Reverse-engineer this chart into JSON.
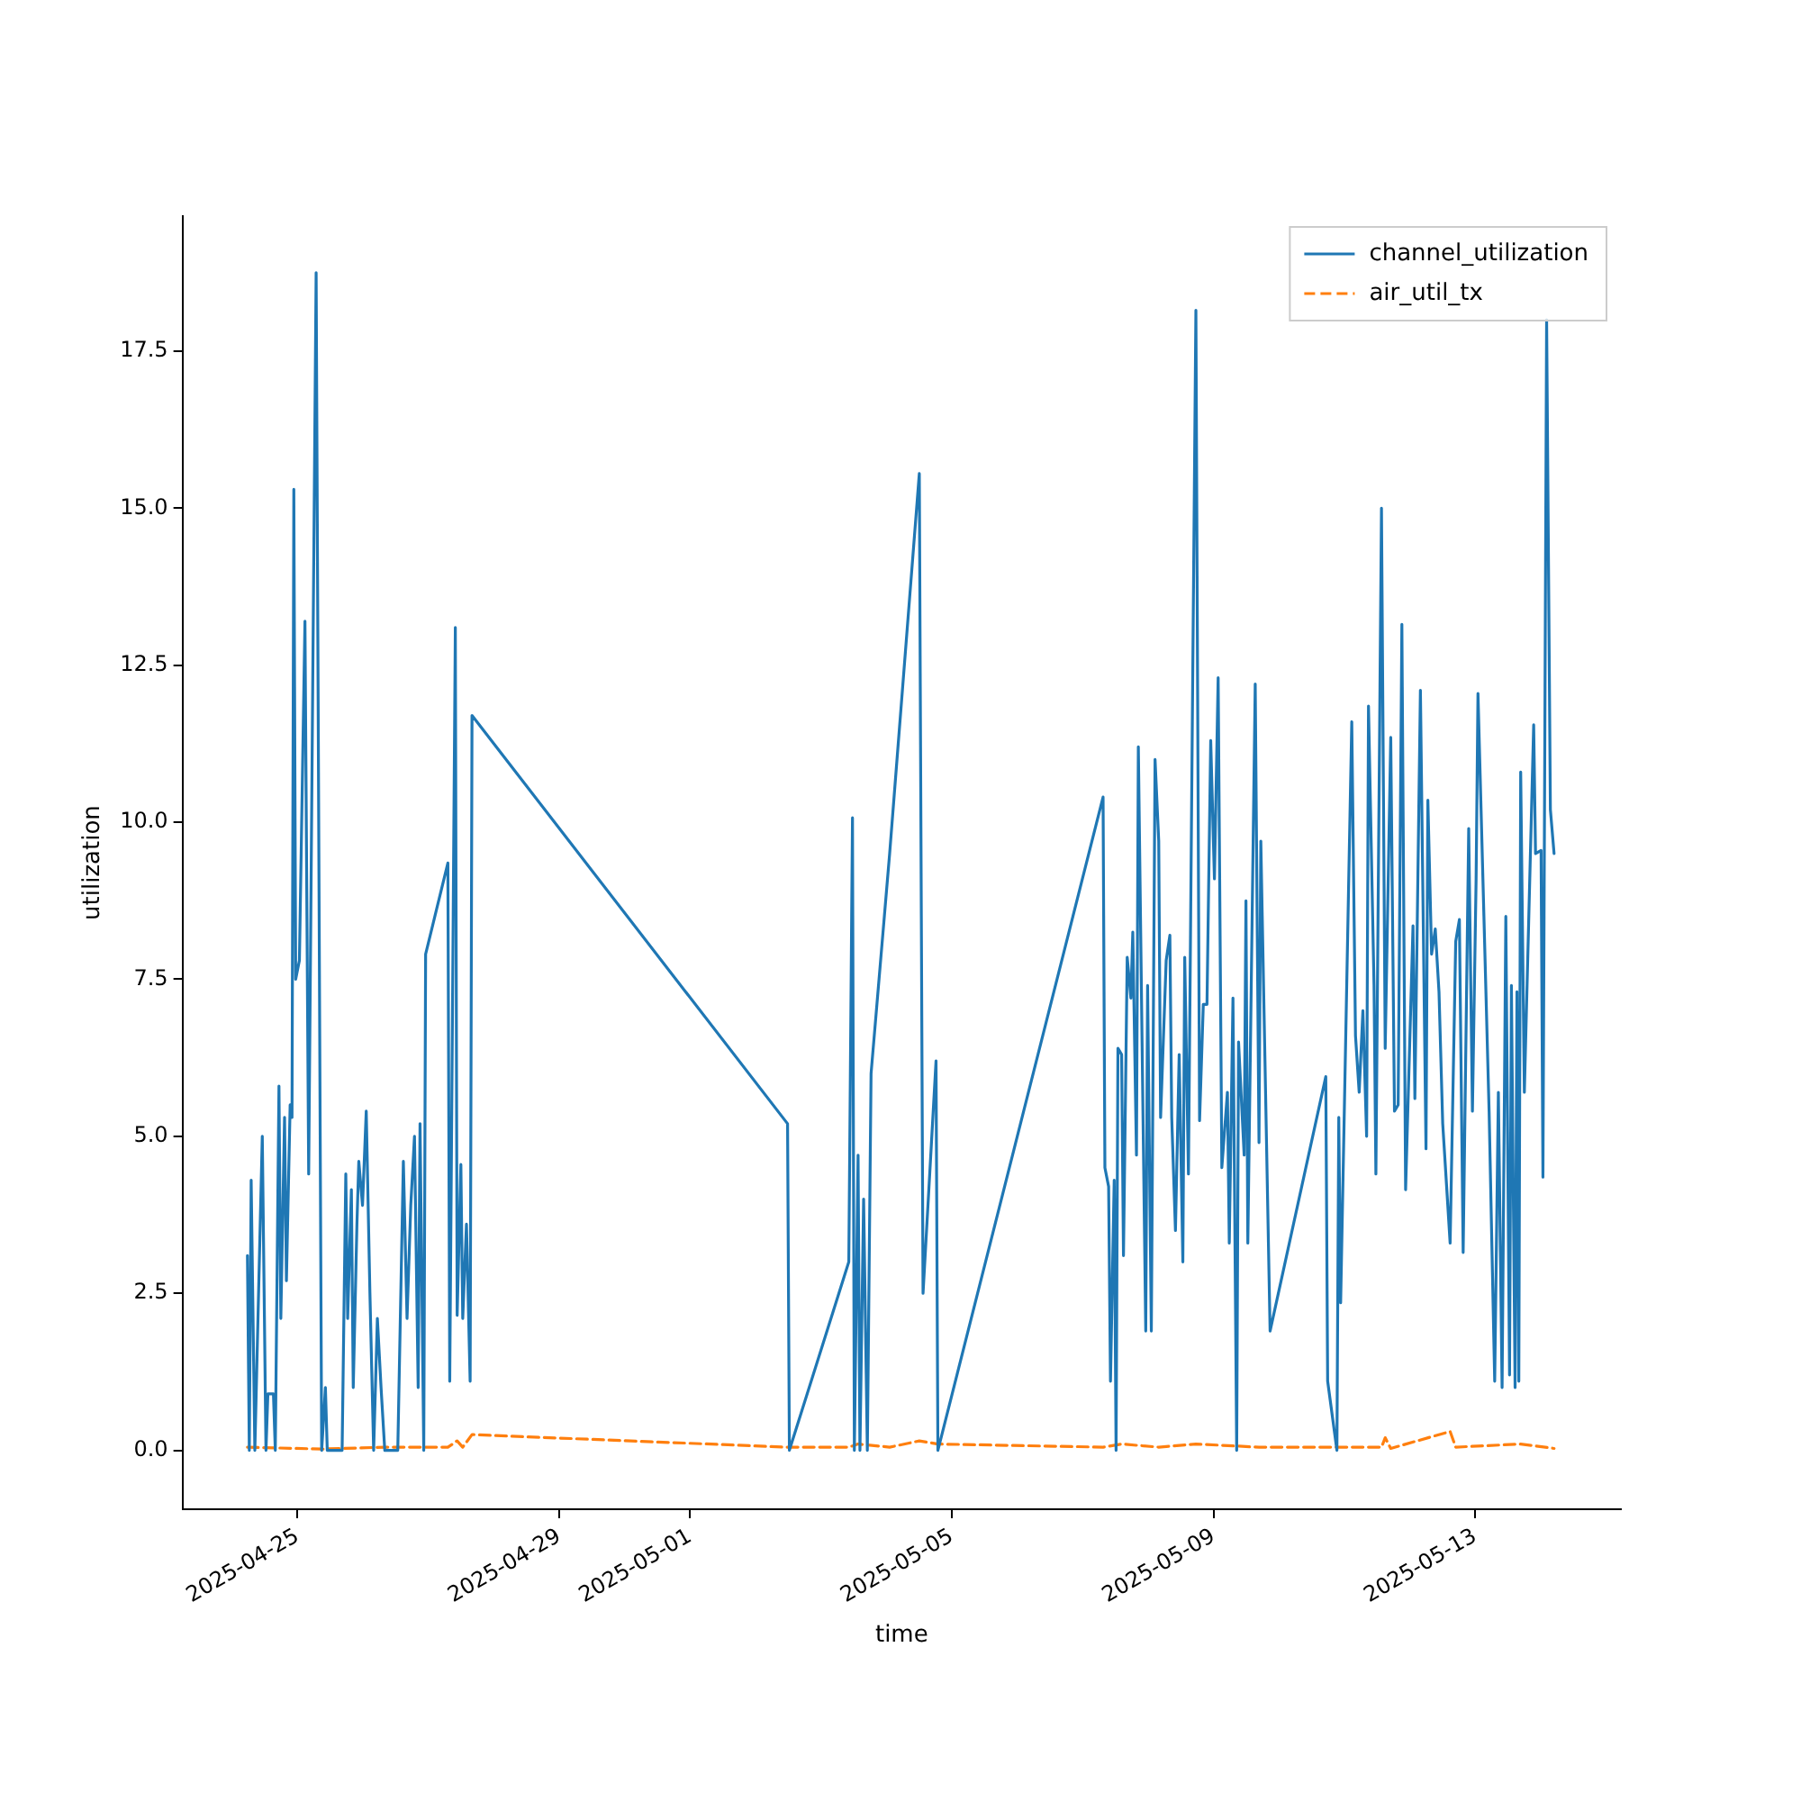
{
  "chart_data": {
    "type": "line",
    "xlabel": "time",
    "ylabel": "utilization",
    "xlim": [
      "2025-04-23T05:47",
      "2025-05-15T05:29"
    ],
    "xticks": [
      "2025-04-25",
      "2025-04-29",
      "2025-05-01",
      "2025-05-05",
      "2025-05-09",
      "2025-05-13"
    ],
    "ylim": [
      -0.94,
      19.65
    ],
    "yticks": [
      {
        "value": 0,
        "label": "0.0"
      },
      {
        "value": 2.5,
        "label": "2.5"
      },
      {
        "value": 5,
        "label": "5.0"
      },
      {
        "value": 7.5,
        "label": "7.5"
      },
      {
        "value": 10,
        "label": "10.0"
      },
      {
        "value": 12.5,
        "label": "12.5"
      },
      {
        "value": 15,
        "label": "15.0"
      },
      {
        "value": 17.5,
        "label": "17.5"
      }
    ],
    "grid": false,
    "legend": "top right",
    "marker": "none",
    "series": [
      {
        "name": "channel_utilization",
        "color": "#1f77b4",
        "line_style": "solid",
        "x": [
          "2025-04-24T05:37",
          "2025-04-24T06:18",
          "2025-04-24T06:59",
          "2025-04-24T08:20",
          "2025-04-24T11:04",
          "2025-04-24T12:25",
          "2025-04-24T13:07",
          "2025-04-24T15:09",
          "2025-04-24T15:50",
          "2025-04-24T17:11",
          "2025-04-24T17:52",
          "2025-04-24T19:14",
          "2025-04-24T19:55",
          "2025-04-24T21:17",
          "2025-04-24T21:58",
          "2025-04-24T22:38",
          "2025-04-24T23:19",
          "2025-04-25T00:41",
          "2025-04-25T02:43",
          "2025-04-25T04:05",
          "2025-04-25T06:49",
          "2025-04-25T08:51",
          "2025-04-25T10:13",
          "2025-04-25T10:54",
          "2025-04-25T16:21",
          "2025-04-25T17:42",
          "2025-04-25T18:23",
          "2025-04-25T19:45",
          "2025-04-25T20:26",
          "2025-04-25T21:47",
          "2025-04-25T22:28",
          "2025-04-25T23:50",
          "2025-04-26T01:12",
          "2025-04-26T02:33",
          "2025-04-26T03:55",
          "2025-04-26T05:17",
          "2025-04-26T06:38",
          "2025-04-26T08:00",
          "2025-04-26T12:46",
          "2025-04-26T14:49",
          "2025-04-26T16:10",
          "2025-04-26T17:32",
          "2025-04-26T18:54",
          "2025-04-26T20:15",
          "2025-04-26T20:56",
          "2025-04-26T22:18",
          "2025-04-26T22:59",
          "2025-04-27T07:09",
          "2025-04-27T07:50",
          "2025-04-27T09:53",
          "2025-04-27T10:33",
          "2025-04-27T11:55",
          "2025-04-27T12:36",
          "2025-04-27T13:58",
          "2025-04-27T15:19",
          "2025-04-27T16:00",
          "2025-05-02T11:46",
          "2025-05-02T12:26",
          "2025-05-03T10:14",
          "2025-05-03T11:35",
          "2025-05-03T12:16",
          "2025-05-03T13:38",
          "2025-05-03T14:19",
          "2025-05-03T15:40",
          "2025-05-03T17:02",
          "2025-05-03T18:24",
          "2025-05-04T01:13",
          "2025-05-04T12:06",
          "2025-05-04T13:28",
          "2025-05-04T18:14",
          "2025-05-04T18:55",
          "2025-05-07T07:31",
          "2025-05-07T08:11",
          "2025-05-07T09:33",
          "2025-05-07T10:14",
          "2025-05-07T11:36",
          "2025-05-07T12:17",
          "2025-05-07T12:58",
          "2025-05-07T14:19",
          "2025-05-07T15:00",
          "2025-05-07T16:22",
          "2025-05-07T17:43",
          "2025-05-07T18:25",
          "2025-05-07T19:46",
          "2025-05-07T20:27",
          "2025-05-07T23:10",
          "2025-05-07T23:51",
          "2025-05-08T01:13",
          "2025-05-08T02:35",
          "2025-05-08T03:56",
          "2025-05-08T04:37",
          "2025-05-08T06:40",
          "2025-05-08T08:01",
          "2025-05-08T08:42",
          "2025-05-08T10:04",
          "2025-05-08T11:26",
          "2025-05-08T12:47",
          "2025-05-08T13:28",
          "2025-05-08T14:50",
          "2025-05-08T17:34",
          "2025-05-08T18:55",
          "2025-05-08T20:17",
          "2025-05-08T21:38",
          "2025-05-08T23:00",
          "2025-05-09T00:22",
          "2025-05-09T01:44",
          "2025-05-09T03:05",
          "2025-05-09T05:08",
          "2025-05-09T05:49",
          "2025-05-09T07:10",
          "2025-05-09T08:32",
          "2025-05-09T09:13",
          "2025-05-09T11:16",
          "2025-05-09T11:56",
          "2025-05-09T12:37",
          "2025-05-09T15:20",
          "2025-05-09T16:43",
          "2025-05-09T17:23",
          "2025-05-09T20:47",
          "2025-05-10T17:13",
          "2025-05-10T17:54",
          "2025-05-10T21:18",
          "2025-05-10T21:59",
          "2025-05-10T22:40",
          "2025-05-11T02:45",
          "2025-05-11T04:07",
          "2025-05-11T05:28",
          "2025-05-11T06:50",
          "2025-05-11T08:12",
          "2025-05-11T08:53",
          "2025-05-11T10:55",
          "2025-05-11T11:36",
          "2025-05-11T13:39",
          "2025-05-11T15:01",
          "2025-05-11T17:03",
          "2025-05-11T18:25",
          "2025-05-11T19:46",
          "2025-05-11T21:08",
          "2025-05-11T22:30",
          "2025-05-12T01:13",
          "2025-05-12T01:54",
          "2025-05-12T03:56",
          "2025-05-12T05:59",
          "2025-05-12T06:40",
          "2025-05-12T08:02",
          "2025-05-12T09:23",
          "2025-05-12T10:45",
          "2025-05-12T12:07",
          "2025-05-12T14:50",
          "2025-05-12T16:53",
          "2025-05-12T18:14",
          "2025-05-12T19:37",
          "2025-05-12T21:39",
          "2025-05-12T23:01",
          "2025-05-13T00:22",
          "2025-05-13T01:03",
          "2025-05-13T05:08",
          "2025-05-13T07:11",
          "2025-05-13T08:32",
          "2025-05-13T09:54",
          "2025-05-13T11:16",
          "2025-05-13T12:38",
          "2025-05-13T13:19",
          "2025-05-13T14:40",
          "2025-05-13T15:21",
          "2025-05-13T16:02",
          "2025-05-13T16:43",
          "2025-05-13T18:04",
          "2025-05-13T21:29",
          "2025-05-13T22:10",
          "2025-05-14T00:12",
          "2025-05-14T00:53",
          "2025-05-14T02:14",
          "2025-05-14T03:37",
          "2025-05-14T04:58"
        ],
        "values": [
          3.1,
          0,
          4.3,
          0,
          5.0,
          0,
          0.9,
          0.9,
          0,
          5.8,
          2.1,
          5.3,
          2.7,
          5.5,
          5.3,
          15.3,
          7.5,
          7.8,
          13.2,
          4.4,
          18.75,
          0,
          1.0,
          0,
          0,
          4.4,
          2.1,
          4.15,
          1.0,
          3.6,
          4.6,
          3.9,
          5.4,
          2.5,
          0,
          2.1,
          1.0,
          0,
          0,
          4.6,
          2.1,
          3.9,
          5.0,
          1.0,
          5.2,
          0,
          7.9,
          9.35,
          1.1,
          13.1,
          2.15,
          4.55,
          2.1,
          3.6,
          1.1,
          11.7,
          5.2,
          0,
          3.0,
          10.07,
          0,
          4.7,
          0,
          4.0,
          0,
          6.0,
          9.5,
          15.55,
          2.5,
          6.2,
          0,
          10.4,
          4.5,
          4.2,
          1.1,
          4.3,
          0,
          6.4,
          6.3,
          3.1,
          7.85,
          7.2,
          8.25,
          4.7,
          11.2,
          1.9,
          7.4,
          1.9,
          11.0,
          9.7,
          5.3,
          7.8,
          8.2,
          5.3,
          3.5,
          6.3,
          3.0,
          7.85,
          4.4,
          18.15,
          5.25,
          7.1,
          7.1,
          11.3,
          9.1,
          12.3,
          4.5,
          5.7,
          3.3,
          7.2,
          0,
          6.5,
          4.7,
          8.75,
          3.3,
          12.2,
          4.9,
          9.7,
          1.9,
          5.95,
          1.1,
          0,
          5.3,
          2.35,
          11.6,
          6.6,
          5.7,
          7.0,
          5.0,
          11.85,
          7.4,
          4.4,
          15.0,
          6.4,
          11.35,
          5.4,
          5.5,
          13.15,
          4.15,
          8.35,
          5.6,
          12.1,
          4.8,
          10.35,
          7.9,
          8.3,
          7.3,
          5.2,
          3.3,
          8.1,
          8.45,
          3.15,
          9.9,
          5.4,
          9.1,
          12.05,
          5.4,
          1.1,
          5.7,
          1.0,
          8.5,
          1.2,
          7.4,
          1.0,
          7.3,
          1.1,
          10.8,
          5.7,
          11.55,
          9.5,
          9.55,
          4.35,
          18.0,
          10.2,
          9.5
        ]
      },
      {
        "name": "air_util_tx",
        "color": "#ff7f0e",
        "line_style": "dashed",
        "x": [
          "2025-04-24T05:37",
          "2025-04-25T08:51",
          "2025-04-26T08:00",
          "2025-04-27T07:09",
          "2025-04-27T10:33",
          "2025-04-27T12:36",
          "2025-04-27T16:00",
          "2025-05-02T11:46",
          "2025-05-03T10:14",
          "2025-05-03T13:38",
          "2025-05-04T01:13",
          "2025-05-04T12:06",
          "2025-05-04T18:55",
          "2025-05-07T07:31",
          "2025-05-07T14:19",
          "2025-05-08T03:56",
          "2025-05-08T17:34",
          "2025-05-09T16:43",
          "2025-05-10T17:13",
          "2025-05-11T13:39",
          "2025-05-11T15:01",
          "2025-05-11T17:03",
          "2025-05-12T14:50",
          "2025-05-12T16:53",
          "2025-05-13T16:43",
          "2025-05-14T04:58"
        ],
        "values": [
          0.05,
          0.02,
          0.05,
          0.05,
          0.15,
          0.05,
          0.25,
          0.05,
          0.05,
          0.1,
          0.05,
          0.15,
          0.1,
          0.05,
          0.1,
          0.05,
          0.1,
          0.05,
          0.05,
          0.05,
          0.2,
          0.03,
          0.3,
          0.05,
          0.1,
          0.03
        ]
      }
    ]
  }
}
